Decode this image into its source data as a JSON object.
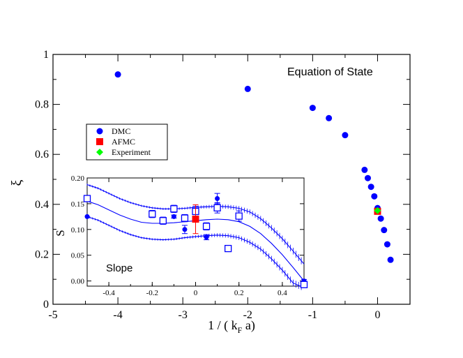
{
  "chart_data": [
    {
      "type": "scatter",
      "annotation": "Equation of State",
      "xlabel": "1 / ( k",
      "xlabel_sub": "F",
      "xlabel_tail": " a)",
      "ylabel": "ξ",
      "xlim": [
        -5,
        0.5
      ],
      "ylim": [
        0,
        1
      ],
      "xticks": [
        "-5",
        "-4",
        "-3",
        "-2",
        "-1",
        "0"
      ],
      "yticks": [
        "0",
        "0.2",
        "0.4",
        "0.6",
        "0.8",
        "1"
      ],
      "legend": {
        "placement": "left",
        "entries": [
          {
            "label": "DMC",
            "marker": "circle",
            "color": "#0000ff"
          },
          {
            "label": "AFMC",
            "marker": "square",
            "color": "#ff0000"
          },
          {
            "label": "Experiment",
            "marker": "diamond",
            "color": "#00ff00"
          }
        ]
      },
      "series": [
        {
          "name": "DMC",
          "marker": "circle",
          "color": "#0000ff",
          "x": [
            -4,
            -2,
            -1,
            -0.75,
            -0.5,
            -0.2,
            -0.15,
            -0.1,
            -0.05,
            0,
            0.05,
            0.1,
            0.15,
            0.2
          ],
          "y": [
            0.92,
            0.862,
            0.786,
            0.745,
            0.677,
            0.538,
            0.505,
            0.47,
            0.432,
            0.385,
            0.343,
            0.297,
            0.24,
            0.178
          ]
        },
        {
          "name": "AFMC",
          "marker": "square",
          "color": "#ff0000",
          "x": [
            0
          ],
          "y": [
            0.372
          ]
        },
        {
          "name": "Experiment",
          "marker": "diamond",
          "color": "#00ff00",
          "x": [
            0
          ],
          "y": [
            0.375
          ]
        }
      ]
    },
    {
      "type": "scatter",
      "annotation": "Slope",
      "ylabel": "S",
      "xlim": [
        -0.5,
        0.5
      ],
      "ylim": [
        -0.01,
        0.2
      ],
      "xticks": [
        "-0.4",
        "-0.2",
        "0",
        "0.2",
        "0.4"
      ],
      "yticks": [
        "0.00",
        "0.05",
        "0.10",
        "0.15",
        "0.20"
      ],
      "series": [
        {
          "name": "DMC",
          "marker": "circle",
          "color": "#0000ff",
          "x": [
            -0.5,
            -0.2,
            -0.1,
            -0.05,
            0.05,
            0.1,
            0.5
          ],
          "y": [
            0.125,
            0.13,
            0.125,
            0.1,
            0.085,
            0.16,
            0.0
          ],
          "err": [
            0.0,
            0.005,
            0.003,
            0.008,
            0.005,
            0.01,
            0.003
          ]
        },
        {
          "name": "squares",
          "marker": "open-square",
          "color": "#0000ff",
          "x": [
            -0.5,
            -0.2,
            -0.15,
            -0.1,
            -0.05,
            0,
            0.05,
            0.1,
            0.15,
            0.2,
            0.5
          ],
          "y": [
            0.16,
            0.13,
            0.117,
            0.14,
            0.122,
            0.135,
            0.106,
            0.142,
            0.063,
            0.126,
            -0.007
          ],
          "err": [
            0.005,
            0.007,
            0.007,
            0.007,
            0.007,
            0.01,
            0.007,
            0.01,
            0.005,
            0.01,
            0.003
          ]
        },
        {
          "name": "AFMC",
          "marker": "square",
          "color": "#ff0000",
          "x": [
            0
          ],
          "y": [
            0.12
          ],
          "err": [
            0.028
          ]
        }
      ],
      "curves": {
        "x": [
          -0.5,
          -0.45,
          -0.4,
          -0.35,
          -0.3,
          -0.25,
          -0.2,
          -0.15,
          -0.1,
          -0.05,
          0,
          0.05,
          0.1,
          0.15,
          0.2,
          0.25,
          0.3,
          0.35,
          0.4,
          0.45,
          0.5
        ],
        "middle": [
          0.155,
          0.148,
          0.138,
          0.128,
          0.12,
          0.114,
          0.112,
          0.112,
          0.113,
          0.115,
          0.117,
          0.119,
          0.12,
          0.119,
          0.115,
          0.106,
          0.092,
          0.073,
          0.051,
          0.026,
          0.0
        ],
        "upper": [
          0.187,
          0.18,
          0.17,
          0.16,
          0.152,
          0.146,
          0.142,
          0.14,
          0.14,
          0.141,
          0.143,
          0.144,
          0.145,
          0.144,
          0.141,
          0.134,
          0.121,
          0.103,
          0.082,
          0.058,
          0.033
        ],
        "lower": [
          0.125,
          0.118,
          0.108,
          0.098,
          0.09,
          0.084,
          0.081,
          0.08,
          0.081,
          0.084,
          0.086,
          0.088,
          0.089,
          0.088,
          0.084,
          0.075,
          0.062,
          0.043,
          0.021,
          -0.004,
          -0.013
        ]
      }
    }
  ]
}
